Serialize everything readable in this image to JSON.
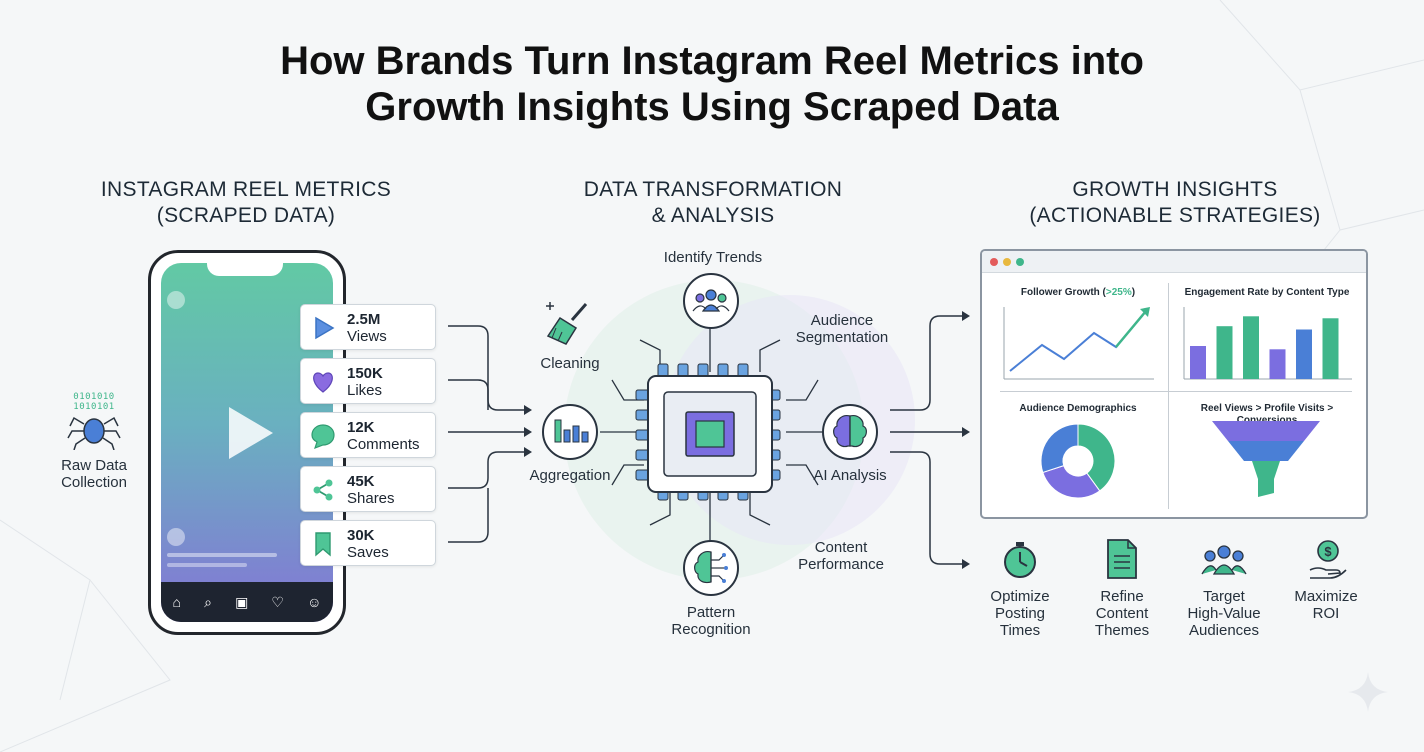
{
  "title_line1": "How Brands Turn Instagram Reel Metrics into",
  "title_line2": "Growth Insights Using Scraped Data",
  "sections": {
    "left": "INSTAGRAM REEL METRICS\n(SCRAPED DATA)",
    "middle": "DATA TRANSFORMATION\n& ANALYSIS",
    "right": "GROWTH INSIGHTS\n(ACTIONABLE STRATEGIES)"
  },
  "raw_data": {
    "binary_row1": "0101010",
    "binary_row2": "1010101",
    "label": "Raw Data\nCollection"
  },
  "metrics": [
    {
      "value": "2.5M",
      "name": "Views",
      "icon": "play-icon",
      "color": "#3b74c4"
    },
    {
      "value": "150K",
      "name": "Likes",
      "icon": "heart-icon",
      "color": "#7b5fd1"
    },
    {
      "value": "12K",
      "name": "Comments",
      "icon": "comment-icon",
      "color": "#3fb68b"
    },
    {
      "value": "45K",
      "name": "Shares",
      "icon": "share-icon",
      "color": "#3fb68b"
    },
    {
      "value": "30K",
      "name": "Saves",
      "icon": "bookmark-icon",
      "color": "#3fb68b"
    }
  ],
  "process": {
    "identify_trends": "Identify Trends",
    "audience_segmentation": "Audience\nSegmentation",
    "cleaning": "Cleaning",
    "aggregation": "Aggregation",
    "ai_analysis": "AI Analysis",
    "content_performance": "Content\nPerformance",
    "pattern_recognition": "Pattern\nRecognition"
  },
  "dashboard": {
    "follower_growth_title": "Follower Growth (",
    "follower_growth_pct": ">25%",
    "follower_growth_close": ")",
    "engagement_title": "Engagement Rate by Content Type",
    "demographics_title": "Audience Demographics",
    "funnel_title": "Reel Views > Profile Visits > Conversions",
    "engagement_bars": [
      0.5,
      0.8,
      0.95,
      0.45,
      0.75,
      0.92
    ],
    "engagement_colors": [
      "#7b6ee0",
      "#3fb68b",
      "#3fb68b",
      "#7b6ee0",
      "#4a7fd6",
      "#3fb68b"
    ],
    "demographics_slices": [
      0.4,
      0.3,
      0.3
    ],
    "demographics_colors": [
      "#3fb68b",
      "#7b6ee0",
      "#4a7fd6"
    ]
  },
  "insights": [
    {
      "label": "Optimize\nPosting\nTimes",
      "icon": "stopwatch-icon"
    },
    {
      "label": "Refine\nContent\nThemes",
      "icon": "document-icon"
    },
    {
      "label": "Target\nHigh-Value\nAudiences",
      "icon": "people-icon"
    },
    {
      "label": "Maximize\nROI",
      "icon": "money-hand-icon"
    }
  ],
  "colors": {
    "accent_green": "#3fb68b",
    "accent_purple": "#7b6ee0",
    "accent_blue": "#4a7fd6",
    "ink": "#2a3440"
  }
}
